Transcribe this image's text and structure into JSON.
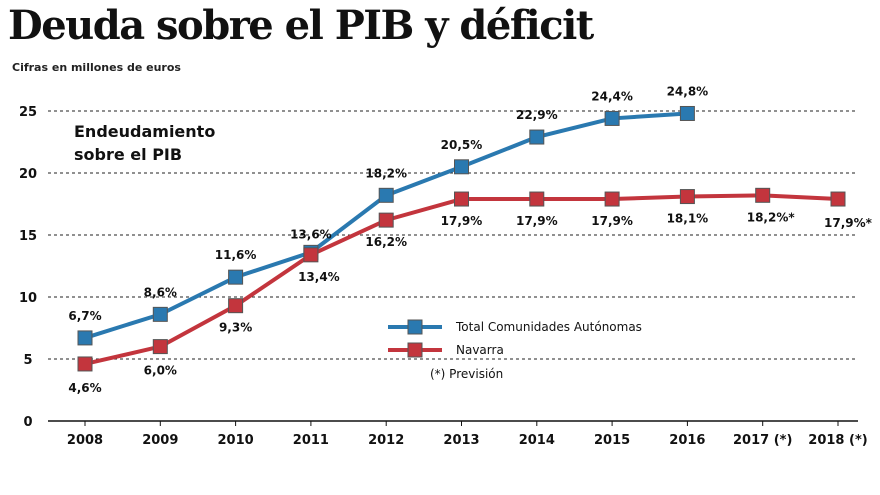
{
  "chart_data": {
    "type": "line",
    "title": "Deuda sobre el PIB y déficit",
    "subtitle": "Cifras en millones de euros",
    "annotation": [
      "Endeudamiento",
      "sobre el PIB"
    ],
    "categories": [
      "2008",
      "2009",
      "2010",
      "2011",
      "2012",
      "2013",
      "2014",
      "2015",
      "2016",
      "2017 (*)",
      "2018 (*)"
    ],
    "ylim": [
      0,
      25
    ],
    "yticks": [
      0,
      5,
      10,
      15,
      20,
      25
    ],
    "grid": true,
    "legend_position": "center-right",
    "legend_note": "(*) Previsión",
    "series": [
      {
        "name": "Total Comunidades Autónomas",
        "color": "#2a79b0",
        "values": [
          6.7,
          8.6,
          11.6,
          13.6,
          18.2,
          20.5,
          22.9,
          24.4,
          24.8,
          null,
          null
        ],
        "labels": [
          "6,7%",
          "8,6%",
          "11,6%",
          "13,6%",
          "18,2%",
          "20,5%",
          "22,9%",
          "24,4%",
          "24,8%",
          "",
          ""
        ]
      },
      {
        "name": "Navarra",
        "color": "#c3353d",
        "values": [
          4.6,
          6.0,
          9.3,
          13.4,
          16.2,
          17.9,
          17.9,
          17.9,
          18.1,
          18.2,
          17.9
        ],
        "labels": [
          "4,6%",
          "6,0%",
          "9,3%",
          "13,4%",
          "16,2%",
          "17,9%",
          "17,9%",
          "17,9%",
          "18,1%",
          "18,2%*",
          "17,9%*"
        ]
      }
    ]
  }
}
